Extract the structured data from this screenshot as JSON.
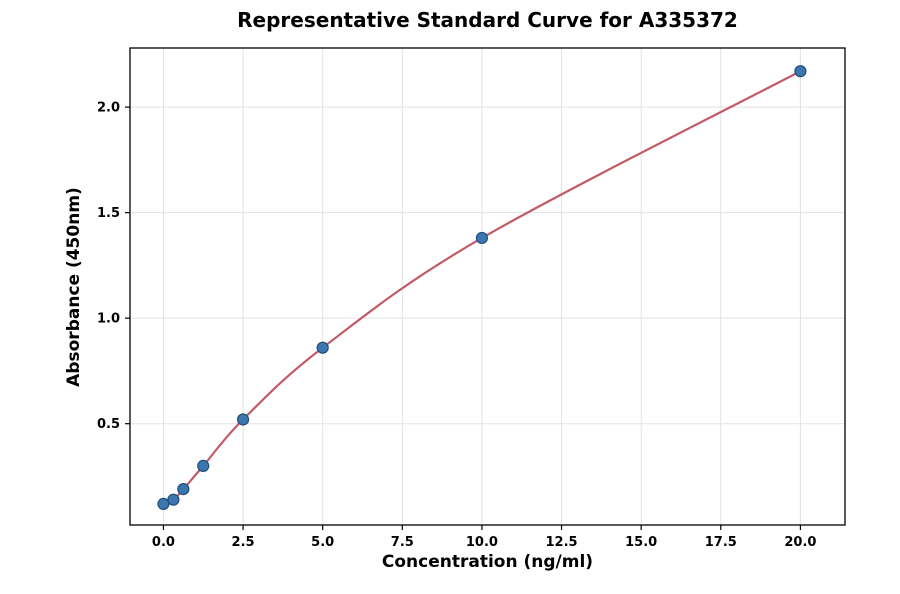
{
  "page": {
    "background": "#ffffff"
  },
  "chart_data": {
    "type": "scatter",
    "title": "Representative Standard Curve for A335372",
    "xlabel": "Concentration (ng/ml)",
    "ylabel": "Absorbance (450nm)",
    "series": [
      {
        "name": "standards",
        "x": [
          0,
          0.313,
          0.625,
          1.25,
          2.5,
          5,
          10,
          20
        ],
        "y": [
          0.12,
          0.14,
          0.19,
          0.3,
          0.52,
          0.86,
          1.38,
          2.17
        ]
      }
    ],
    "fit_curve_through_points": true,
    "xlim": [
      -1.05,
      21.4
    ],
    "ylim": [
      0.02,
      2.28
    ],
    "xticks": {
      "values": [
        0,
        2.5,
        5,
        7.5,
        10,
        12.5,
        15,
        17.5,
        20
      ],
      "labels": [
        "0.0",
        "2.5",
        "5.0",
        "7.5",
        "10.0",
        "12.5",
        "15.0",
        "17.5",
        "20.0"
      ]
    },
    "yticks": {
      "values": [
        0.5,
        1.0,
        1.5,
        2.0
      ],
      "labels": [
        "0.5",
        "1.0",
        "1.5",
        "2.0"
      ]
    },
    "grid": true,
    "legend": "none",
    "colors": {
      "curve": "#c25b67",
      "marker_fill": "#3d76ae",
      "marker_edge": "#1e4e79",
      "grid": "#e2e2e2",
      "frame": "#000000",
      "tick_text": "#000000"
    }
  }
}
